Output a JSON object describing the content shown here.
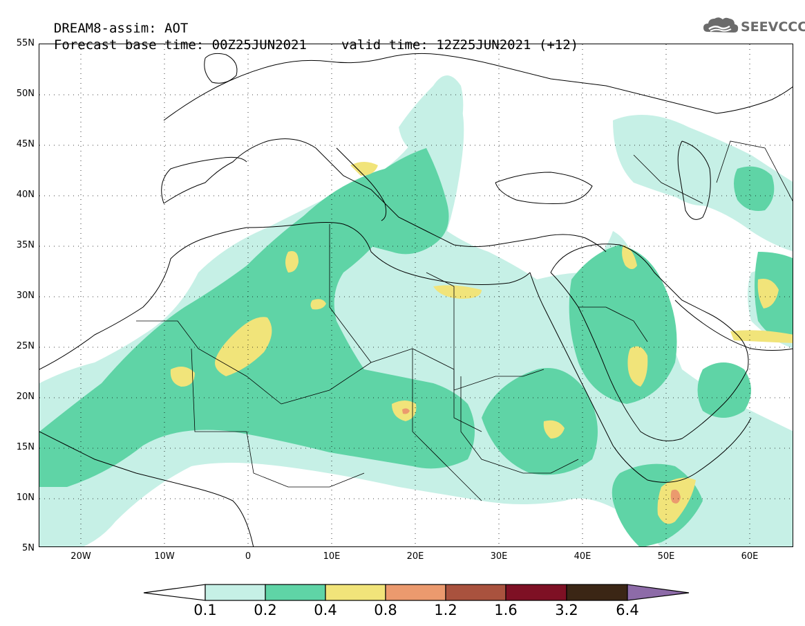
{
  "header": {
    "title": "DREAM8-assim: AOT",
    "base_time": "Forecast base time: 00Z25JUN2021",
    "valid_time": "valid time: 12Z25JUN2021 (+12)"
  },
  "logo": {
    "text": "SEEVCCC",
    "icon": "cloud-logo-icon"
  },
  "map": {
    "type": "AOT forecast map",
    "lat_labels": [
      "55N",
      "50N",
      "45N",
      "40N",
      "35N",
      "30N",
      "25N",
      "20N",
      "15N",
      "10N",
      "5N"
    ],
    "lon_labels": [
      "20W",
      "10W",
      "0",
      "10E",
      "20E",
      "30E",
      "40E",
      "50E",
      "60E"
    ],
    "lat_range": [
      5,
      55
    ],
    "lon_range": [
      -25,
      65
    ],
    "grid": "dotted"
  },
  "legend": {
    "levels": [
      "0.1",
      "0.2",
      "0.4",
      "0.8",
      "1.2",
      "1.6",
      "3.2",
      "6.4"
    ],
    "colors": [
      "#ffffff",
      "#c6f0e6",
      "#5fd4a6",
      "#f1e47a",
      "#eb9a6e",
      "#a9523e",
      "#7e1024",
      "#3b2615",
      "#8d6ba8"
    ]
  }
}
